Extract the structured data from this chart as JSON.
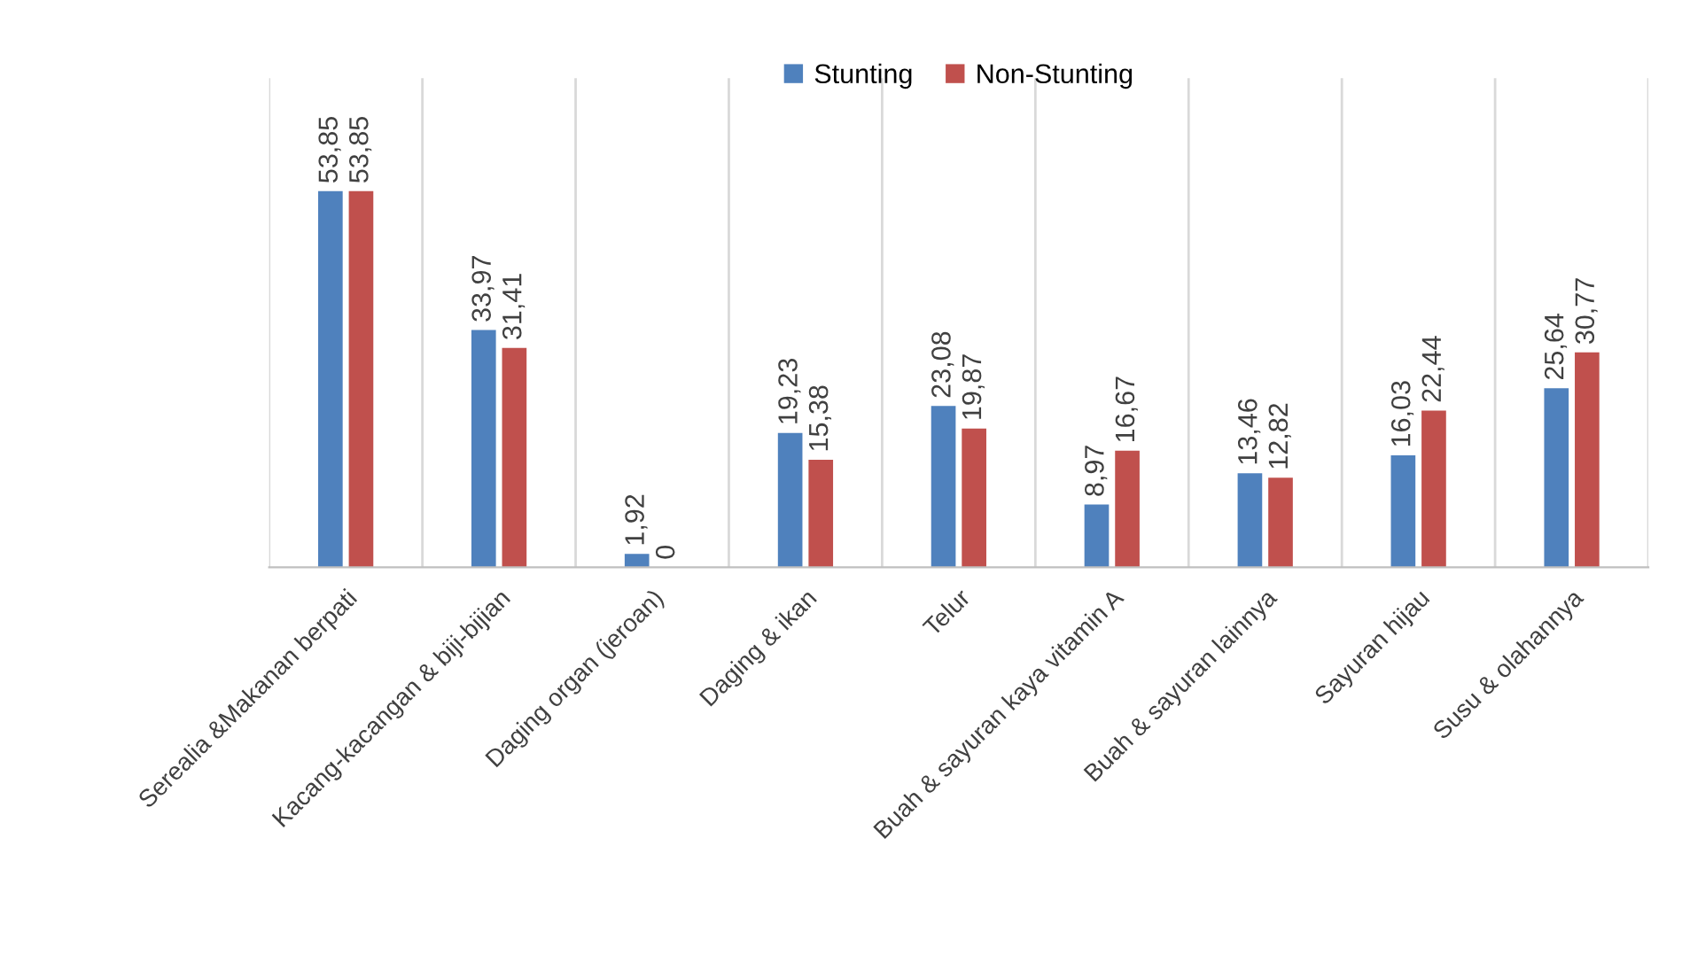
{
  "chart_data": {
    "type": "bar",
    "categories": [
      "Serealia &Makanan berpati",
      "Kacang-kacangan & biji-bijian",
      "Daging organ (jeroan)",
      "Daging & ikan",
      "Telur",
      "Buah & sayuran kaya vitamin A",
      "Buah & sayuran lainnya",
      "Sayuran hijau",
      "Susu & olahannya"
    ],
    "series": [
      {
        "name": "Stunting",
        "color": "#4f81bd",
        "values": [
          53.85,
          33.97,
          1.92,
          19.23,
          23.08,
          8.97,
          13.46,
          16.03,
          25.64
        ],
        "value_labels": [
          "53,85",
          "33,97",
          "1,92",
          "19,23",
          "23,08",
          "8,97",
          "13,46",
          "16,03",
          "25,64"
        ]
      },
      {
        "name": "Non-Stunting",
        "color": "#c0504d",
        "values": [
          53.85,
          31.41,
          0,
          15.38,
          19.87,
          16.67,
          12.82,
          22.44,
          30.77
        ],
        "value_labels": [
          "53,85",
          "31,41",
          "0",
          "15,38",
          "19,87",
          "16,67",
          "12,82",
          "22,44",
          "30,77"
        ]
      }
    ],
    "legend": "top",
    "grid": "x"
  }
}
